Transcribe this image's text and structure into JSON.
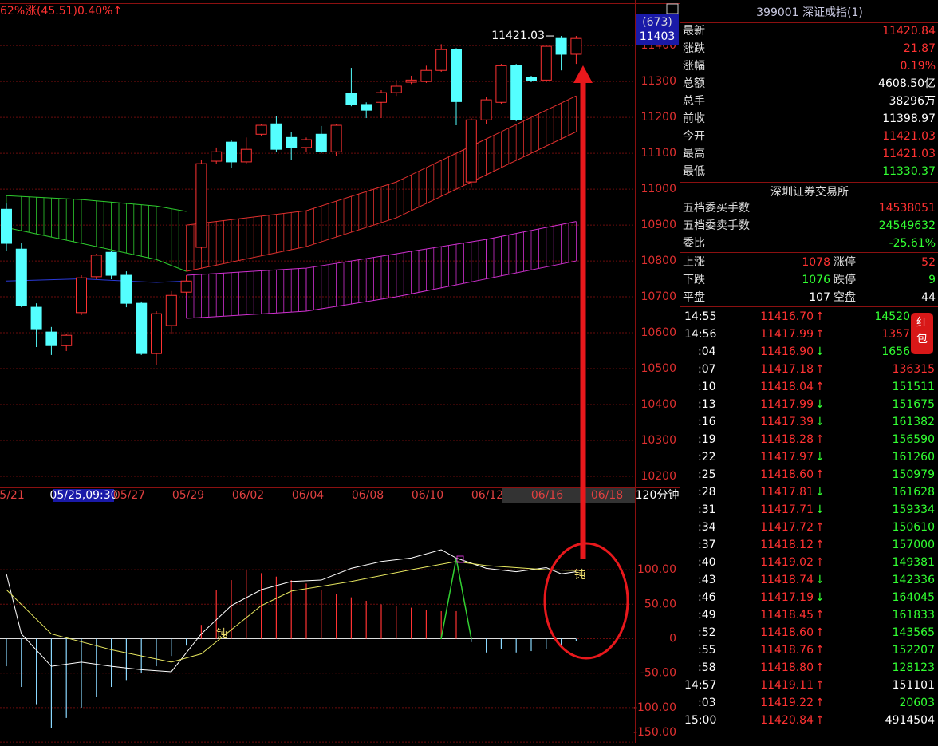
{
  "header": {
    "pct": "62%",
    "change": "涨(45.51)0.40%↑"
  },
  "chart_data": [
    {
      "type": "candlestick",
      "last_label": "11421.03",
      "badge": [
        "(673)",
        "11403"
      ],
      "period": "120分钟",
      "ylim": [
        10171,
        11516
      ],
      "yticks": [
        11400,
        11300,
        11200,
        11100,
        11000,
        10900,
        10800,
        10700,
        10600,
        10500,
        10400,
        10300,
        10200
      ],
      "up_color": "#ff3232",
      "down_color": "#54ffff",
      "open": [
        10944,
        10833,
        10671,
        10602,
        10564,
        10656,
        10756,
        10824,
        10760,
        10682,
        10542,
        10620,
        10713,
        10838,
        11078,
        11131,
        11076,
        11153,
        11182,
        11144,
        11116,
        11153,
        11104,
        11267,
        11236,
        11242,
        11269,
        11298,
        11300,
        11331,
        11389,
        11020,
        11193,
        11242,
        11344,
        11311,
        11304,
        11420,
        11376
      ],
      "close": [
        10849,
        10676,
        10611,
        10564,
        10593,
        10753,
        10816,
        10760,
        10682,
        10542,
        10653,
        10704,
        10744,
        11071,
        11104,
        11076,
        11111,
        11178,
        11111,
        11116,
        11138,
        11104,
        11178,
        11236,
        11220,
        11269,
        11287,
        11304,
        11331,
        11389,
        11244,
        11193,
        11249,
        11344,
        11193,
        11302,
        11398,
        11376,
        11420
      ],
      "high": [
        10960,
        10849,
        10682,
        10616,
        10598,
        10760,
        10820,
        10829,
        10771,
        10687,
        10660,
        10716,
        10760,
        11082,
        11116,
        11138,
        11144,
        11182,
        11204,
        11160,
        11144,
        11176,
        11182,
        11338,
        11242,
        11276,
        11304,
        11316,
        11344,
        11404,
        11393,
        11198,
        11256,
        11349,
        11349,
        11316,
        11402,
        11427,
        11427
      ],
      "low": [
        10827,
        10671,
        10560,
        10538,
        10549,
        10649,
        10749,
        10749,
        10671,
        10538,
        10509,
        10598,
        10704,
        10833,
        11071,
        11060,
        11071,
        11149,
        11104,
        11082,
        11104,
        11100,
        11093,
        11231,
        11198,
        11198,
        11260,
        11293,
        11296,
        11327,
        11178,
        11004,
        11182,
        11238,
        11189,
        11298,
        11298,
        11331,
        11349
      ],
      "x_labels": [
        "5/21",
        "05/25,09:30",
        "05/27",
        "05/29",
        "06/02",
        "06/04",
        "06/08",
        "06/10",
        "06/12",
        "06/16",
        "06/18"
      ],
      "clouds": [
        {
          "color": "#2ecc2e",
          "x": [
            0,
            5,
            10,
            12
          ],
          "upper": [
            10982,
            10971,
            10953,
            10938
          ],
          "lower": [
            10893,
            10849,
            10804,
            10771
          ]
        },
        {
          "color": "#e0302e",
          "x": [
            12,
            20,
            26,
            32,
            38
          ],
          "upper": [
            10900,
            10940,
            11020,
            11140,
            11260
          ],
          "lower": [
            10771,
            10840,
            10920,
            11040,
            11160
          ]
        },
        {
          "color": "#d030d0",
          "x": [
            12,
            20,
            26,
            32,
            38
          ],
          "upper": [
            10760,
            10780,
            10820,
            10860,
            10910
          ],
          "lower": [
            10640,
            10660,
            10700,
            10750,
            10800
          ]
        }
      ],
      "lines": [
        {
          "color": "#2a3ad8",
          "x": [
            0,
            5,
            10,
            12
          ],
          "values": [
            10744,
            10750,
            10740,
            10744
          ]
        }
      ]
    },
    {
      "type": "macd",
      "ylim": [
        -151,
        173
      ],
      "yticks": [
        {
          "value": 100,
          "label": "100.00"
        },
        {
          "value": 50,
          "label": "50.00"
        },
        0,
        {
          "value": -50,
          "label": "-50.00"
        },
        {
          "value": -100,
          "label": "-100.00"
        },
        {
          "value": -150,
          "label": "-150.00"
        }
      ],
      "histogram": [
        -40,
        -70,
        -95,
        -130,
        -115,
        -100,
        -85,
        -70,
        -60,
        -50,
        -40,
        -25,
        -10,
        20,
        70,
        85,
        100,
        95,
        90,
        85,
        80,
        70,
        65,
        60,
        55,
        50,
        48,
        45,
        42,
        40,
        40,
        -5,
        -20,
        -15,
        -20,
        -18,
        -15,
        -10,
        -3
      ],
      "pos_color": "#ff3232",
      "neg_color": "#8ad8ff",
      "lines": [
        {
          "color": "#ffffff",
          "x": [
            0,
            1,
            3,
            5,
            7,
            9,
            11,
            13,
            15,
            17,
            19,
            21,
            23,
            25,
            27,
            29,
            30,
            32,
            34,
            36,
            37,
            38
          ],
          "values": [
            94,
            7,
            -40,
            -34,
            -40,
            -45,
            -48,
            7,
            48,
            71,
            83,
            85,
            102,
            112,
            117,
            129,
            117,
            102,
            97,
            103,
            94,
            97
          ]
        },
        {
          "color": "#e8e860",
          "x": [
            0,
            3,
            7,
            11,
            13,
            15,
            17,
            19,
            23,
            27,
            30,
            32,
            36,
            38
          ],
          "values": [
            71,
            7,
            -16,
            -34,
            -22,
            13,
            48,
            69,
            83,
            100,
            112,
            106,
            100,
            99
          ]
        }
      ],
      "annotations": [
        "钝",
        "钝"
      ]
    }
  ],
  "quote": {
    "title": "399001 深证成指(1)",
    "rows": [
      {
        "label": "最新",
        "value": "11420.84",
        "color": "#ff3232"
      },
      {
        "label": "涨跌",
        "value": "21.87",
        "color": "#ff3232"
      },
      {
        "label": "涨幅",
        "value": "0.19%",
        "color": "#ff3232"
      },
      {
        "label": "总额",
        "value": "4608.50亿",
        "color": "#ffffff"
      },
      {
        "label": "总手",
        "value": "38296万",
        "color": "#ffffff"
      },
      {
        "label": "前收",
        "value": "11398.97",
        "color": "#ffffff"
      },
      {
        "label": "今开",
        "value": "11421.03",
        "color": "#ff3232"
      },
      {
        "label": "最高",
        "value": "11421.03",
        "color": "#ff3232"
      },
      {
        "label": "最低",
        "value": "11330.37",
        "color": "#32ff32"
      }
    ],
    "exchange": "深圳证券交易所",
    "orders": [
      {
        "label": "五档委买手数",
        "value": "14538051",
        "color": "#ff3232"
      },
      {
        "label": "五档委卖手数",
        "value": "24549632",
        "color": "#32ff32"
      },
      {
        "label": "委比",
        "value": "-25.61%",
        "color": "#32ff32"
      }
    ],
    "stats": [
      {
        "l1": "上涨",
        "v1": "1078",
        "c1": "#ff3232",
        "l2": "涨停",
        "v2": "52",
        "c2": "#ff3232"
      },
      {
        "l1": "下跌",
        "v1": "1076",
        "c1": "#32ff32",
        "l2": "跌停",
        "v2": "9",
        "c2": "#32ff32"
      },
      {
        "l1": "平盘",
        "v1": "107",
        "c1": "#ffffff",
        "l2": "空盘",
        "v2": "44",
        "c2": "#ffffff"
      }
    ]
  },
  "ticks": [
    {
      "time": "14:55",
      "price": "11416.70",
      "arrow": "↑",
      "arrow_color": "#ff3232",
      "volume": "14520",
      "volume_color": "#32ff32"
    },
    {
      "time": "14:56",
      "price": "11417.99",
      "arrow": "↑",
      "arrow_color": "#ff3232",
      "volume": "1357",
      "volume_color": "#ff3232"
    },
    {
      "time": ":04",
      "price": "11416.90",
      "arrow": "↓",
      "arrow_color": "#32ff32",
      "volume": "1656",
      "volume_color": "#32ff32"
    },
    {
      "time": ":07",
      "price": "11417.18",
      "arrow": "↑",
      "arrow_color": "#ff3232",
      "volume": "136315",
      "volume_color": "#ff3232"
    },
    {
      "time": ":10",
      "price": "11418.04",
      "arrow": "↑",
      "arrow_color": "#ff3232",
      "volume": "151511",
      "volume_color": "#32ff32"
    },
    {
      "time": ":13",
      "price": "11417.99",
      "arrow": "↓",
      "arrow_color": "#32ff32",
      "volume": "151675",
      "volume_color": "#32ff32"
    },
    {
      "time": ":16",
      "price": "11417.39",
      "arrow": "↓",
      "arrow_color": "#32ff32",
      "volume": "161382",
      "volume_color": "#32ff32"
    },
    {
      "time": ":19",
      "price": "11418.28",
      "arrow": "↑",
      "arrow_color": "#ff3232",
      "volume": "156590",
      "volume_color": "#32ff32"
    },
    {
      "time": ":22",
      "price": "11417.97",
      "arrow": "↓",
      "arrow_color": "#32ff32",
      "volume": "161260",
      "volume_color": "#32ff32"
    },
    {
      "time": ":25",
      "price": "11418.60",
      "arrow": "↑",
      "arrow_color": "#ff3232",
      "volume": "150979",
      "volume_color": "#32ff32"
    },
    {
      "time": ":28",
      "price": "11417.81",
      "arrow": "↓",
      "arrow_color": "#32ff32",
      "volume": "161628",
      "volume_color": "#32ff32"
    },
    {
      "time": ":31",
      "price": "11417.71",
      "arrow": "↓",
      "arrow_color": "#32ff32",
      "volume": "159334",
      "volume_color": "#32ff32"
    },
    {
      "time": ":34",
      "price": "11417.72",
      "arrow": "↑",
      "arrow_color": "#ff3232",
      "volume": "150610",
      "volume_color": "#32ff32"
    },
    {
      "time": ":37",
      "price": "11418.12",
      "arrow": "↑",
      "arrow_color": "#ff3232",
      "volume": "157000",
      "volume_color": "#32ff32"
    },
    {
      "time": ":40",
      "price": "11419.02",
      "arrow": "↑",
      "arrow_color": "#ff3232",
      "volume": "149381",
      "volume_color": "#32ff32"
    },
    {
      "time": ":43",
      "price": "11418.74",
      "arrow": "↓",
      "arrow_color": "#32ff32",
      "volume": "142336",
      "volume_color": "#32ff32"
    },
    {
      "time": ":46",
      "price": "11417.19",
      "arrow": "↓",
      "arrow_color": "#32ff32",
      "volume": "164045",
      "volume_color": "#32ff32"
    },
    {
      "time": ":49",
      "price": "11418.45",
      "arrow": "↑",
      "arrow_color": "#ff3232",
      "volume": "161833",
      "volume_color": "#32ff32"
    },
    {
      "time": ":52",
      "price": "11418.60",
      "arrow": "↑",
      "arrow_color": "#ff3232",
      "volume": "143565",
      "volume_color": "#32ff32"
    },
    {
      "time": ":55",
      "price": "11418.76",
      "arrow": "↑",
      "arrow_color": "#ff3232",
      "volume": "152207",
      "volume_color": "#32ff32"
    },
    {
      "time": ":58",
      "price": "11418.80",
      "arrow": "↑",
      "arrow_color": "#ff3232",
      "volume": "128123",
      "volume_color": "#32ff32"
    },
    {
      "time": "14:57",
      "price": "11419.11",
      "arrow": "↑",
      "arrow_color": "#ff3232",
      "volume": "151101",
      "volume_color": "#ffffff"
    },
    {
      "time": ":03",
      "price": "11419.22",
      "arrow": "↑",
      "arrow_color": "#ff3232",
      "volume": "20603",
      "volume_color": "#32ff32"
    },
    {
      "time": "15:00",
      "price": "11420.84",
      "arrow": "↑",
      "arrow_color": "#ff3232",
      "volume": "4914504",
      "volume_color": "#ffffff"
    }
  ],
  "red_packet": [
    "红",
    "包"
  ]
}
